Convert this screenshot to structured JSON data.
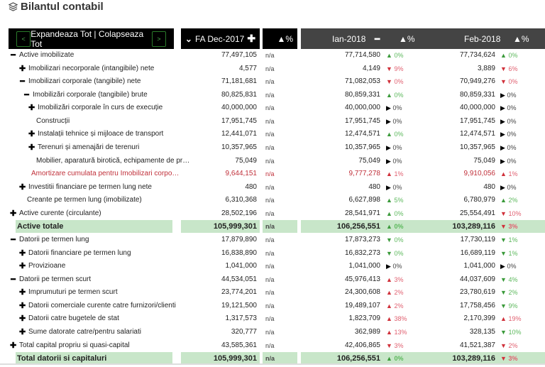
{
  "title": "Bilantul contabil",
  "header": {
    "prev": "<",
    "next": ">",
    "expand_collapse": "Expandeaza Tot | Colapseaza Tot",
    "base_period": "FA Dec-2017",
    "pct": "▲%",
    "periods": [
      "Ian-2018",
      "Feb-2018"
    ]
  },
  "colors": {
    "header_bg": "#000000",
    "period_header_bg": "#444444",
    "total_bg": "#c8e6c9",
    "up_bad": "#d0303a",
    "good": "#3a9a3a"
  },
  "rows": [
    {
      "label": "Active imobilizate",
      "icon": "minus",
      "indent": 0,
      "fa": "77,497,105",
      "na": "n/a",
      "ian": "77,714,580",
      "ian_t": "up",
      "ian_c": "green",
      "ian_p": "0%",
      "feb": "77,734,624",
      "feb_t": "up",
      "feb_c": "green",
      "feb_p": "0%"
    },
    {
      "label": "Imobilizari necorporale (intangibile) nete",
      "icon": "plus",
      "indent": 1,
      "fa": "4,577",
      "na": "n/a",
      "ian": "4,149",
      "ian_t": "down",
      "ian_c": "red",
      "ian_p": "9%",
      "feb": "3,889",
      "feb_t": "down",
      "feb_c": "red",
      "feb_p": "6%"
    },
    {
      "label": "Imobilizari corporale (tangibile) nete",
      "icon": "minus",
      "indent": 1,
      "fa": "71,181,681",
      "na": "n/a",
      "ian": "71,082,053",
      "ian_t": "down",
      "ian_c": "red",
      "ian_p": "0%",
      "feb": "70,949,276",
      "feb_t": "down",
      "feb_c": "red",
      "feb_p": "0%"
    },
    {
      "label": "Imobilizări corporale (tangibile) brute",
      "icon": "minus",
      "indent": 2,
      "fa": "80,825,831",
      "na": "n/a",
      "ian": "80,859,331",
      "ian_t": "up",
      "ian_c": "green",
      "ian_p": "0%",
      "feb": "80,859,331",
      "feb_t": "flat",
      "feb_c": "black",
      "feb_p": "0%"
    },
    {
      "label": "Imobilizări corporale în curs de execuție",
      "icon": "plus",
      "indent": 3,
      "fa": "40,000,000",
      "na": "n/a",
      "ian": "40,000,000",
      "ian_t": "flat",
      "ian_c": "black",
      "ian_p": "0%",
      "feb": "40,000,000",
      "feb_t": "flat",
      "feb_c": "black",
      "feb_p": "0%"
    },
    {
      "label": "Construcții",
      "icon": "none",
      "indent": 4,
      "fa": "17,951,745",
      "na": "n/a",
      "ian": "17,951,745",
      "ian_t": "flat",
      "ian_c": "black",
      "ian_p": "0%",
      "feb": "17,951,745",
      "feb_t": "flat",
      "feb_c": "black",
      "feb_p": "0%"
    },
    {
      "label": "Instalații tehnice și mijloace de transport",
      "icon": "plus",
      "indent": 3,
      "fa": "12,441,071",
      "na": "n/a",
      "ian": "12,474,571",
      "ian_t": "up",
      "ian_c": "green",
      "ian_p": "0%",
      "feb": "12,474,571",
      "feb_t": "flat",
      "feb_c": "black",
      "feb_p": "0%"
    },
    {
      "label": "Terenuri și amenajări de terenuri",
      "icon": "plus",
      "indent": 3,
      "fa": "10,357,965",
      "na": "n/a",
      "ian": "10,357,965",
      "ian_t": "flat",
      "ian_c": "black",
      "ian_p": "0%",
      "feb": "10,357,965",
      "feb_t": "flat",
      "feb_c": "black",
      "feb_p": "0%"
    },
    {
      "label": "Mobilier, aparatură birotică, echipamente de pr…",
      "icon": "none",
      "indent": 4,
      "fa": "75,049",
      "na": "n/a",
      "ian": "75,049",
      "ian_t": "flat",
      "ian_c": "black",
      "ian_p": "0%",
      "feb": "75,049",
      "feb_t": "flat",
      "feb_c": "black",
      "feb_p": "0%"
    },
    {
      "label": "Amortizare cumulata pentru Imobilizari corpo…",
      "icon": "none",
      "indent": 5,
      "red": true,
      "fa": "9,644,151",
      "na": "n/a",
      "ian": "9,777,278",
      "ian_t": "up",
      "ian_c": "red",
      "ian_p": "1%",
      "feb": "9,910,056",
      "feb_t": "up",
      "feb_c": "red",
      "feb_p": "1%"
    },
    {
      "label": "Investitii financiare pe termen lung nete",
      "icon": "plus",
      "indent": 1,
      "fa": "480",
      "na": "n/a",
      "ian": "480",
      "ian_t": "flat",
      "ian_c": "black",
      "ian_p": "0%",
      "feb": "480",
      "feb_t": "flat",
      "feb_c": "black",
      "feb_p": "0%"
    },
    {
      "label": "Creante pe termen lung (imobilizate)",
      "icon": "none",
      "indent": 6,
      "fa": "6,310,368",
      "na": "n/a",
      "ian": "6,627,898",
      "ian_t": "up",
      "ian_c": "green",
      "ian_p": "5%",
      "feb": "6,780,979",
      "feb_t": "up",
      "feb_c": "green",
      "feb_p": "2%"
    },
    {
      "label": "Active curente (circulante)",
      "icon": "plus",
      "indent": 0,
      "fa": "28,502,196",
      "na": "n/a",
      "ian": "28,541,971",
      "ian_t": "up",
      "ian_c": "green",
      "ian_p": "0%",
      "feb": "25,554,491",
      "feb_t": "down",
      "feb_c": "red",
      "feb_p": "10%"
    },
    {
      "label": "Active totale",
      "icon": "none",
      "indent": 7,
      "total": true,
      "fa": "105,999,301",
      "na": "n/a",
      "ian": "106,256,551",
      "ian_t": "up",
      "ian_c": "green",
      "ian_p": "0%",
      "feb": "103,289,116",
      "feb_t": "down",
      "feb_c": "red",
      "feb_p": "3%"
    },
    {
      "label": "Datorii pe termen lung",
      "icon": "minus",
      "indent": 0,
      "fa": "17,879,890",
      "na": "n/a",
      "ian": "17,873,273",
      "ian_t": "down",
      "ian_c": "green",
      "ian_p": "0%",
      "feb": "17,730,119",
      "feb_t": "down",
      "feb_c": "green",
      "feb_p": "1%"
    },
    {
      "label": "Datorii financiare pe termen lung",
      "icon": "plus",
      "indent": 1,
      "fa": "16,838,890",
      "na": "n/a",
      "ian": "16,832,273",
      "ian_t": "down",
      "ian_c": "green",
      "ian_p": "0%",
      "feb": "16,689,119",
      "feb_t": "down",
      "feb_c": "green",
      "feb_p": "1%"
    },
    {
      "label": "Provizioane",
      "icon": "plus",
      "indent": 1,
      "fa": "1,041,000",
      "na": "n/a",
      "ian": "1,041,000",
      "ian_t": "flat",
      "ian_c": "black",
      "ian_p": "0%",
      "feb": "1,041,000",
      "feb_t": "flat",
      "feb_c": "black",
      "feb_p": "0%"
    },
    {
      "label": "Datorii pe termen scurt",
      "icon": "minus",
      "indent": 0,
      "fa": "44,534,051",
      "na": "n/a",
      "ian": "45,976,413",
      "ian_t": "up",
      "ian_c": "red",
      "ian_p": "3%",
      "feb": "44,037,609",
      "feb_t": "down",
      "feb_c": "green",
      "feb_p": "4%"
    },
    {
      "label": "Imprumuturi pe termen scurt",
      "icon": "plus",
      "indent": 1,
      "fa": "23,774,201",
      "na": "n/a",
      "ian": "24,300,608",
      "ian_t": "up",
      "ian_c": "red",
      "ian_p": "2%",
      "feb": "23,780,619",
      "feb_t": "down",
      "feb_c": "green",
      "feb_p": "2%"
    },
    {
      "label": "Datorii comerciale curente catre furnizori/clienti",
      "icon": "plus",
      "indent": 1,
      "fa": "19,121,500",
      "na": "n/a",
      "ian": "19,489,107",
      "ian_t": "up",
      "ian_c": "red",
      "ian_p": "2%",
      "feb": "17,758,456",
      "feb_t": "down",
      "feb_c": "green",
      "feb_p": "9%"
    },
    {
      "label": "Datorii catre bugetele de stat",
      "icon": "plus",
      "indent": 1,
      "fa": "1,317,573",
      "na": "n/a",
      "ian": "1,823,709",
      "ian_t": "up",
      "ian_c": "red",
      "ian_p": "38%",
      "feb": "2,170,399",
      "feb_t": "up",
      "feb_c": "red",
      "feb_p": "19%"
    },
    {
      "label": "Sume datorate catre/pentru salariati",
      "icon": "plus",
      "indent": 1,
      "fa": "320,777",
      "na": "n/a",
      "ian": "362,989",
      "ian_t": "up",
      "ian_c": "red",
      "ian_p": "13%",
      "feb": "328,135",
      "feb_t": "down",
      "feb_c": "green",
      "feb_p": "10%"
    },
    {
      "label": "Total capital propriu si quasi-capital",
      "icon": "plus",
      "indent": 0,
      "fa": "43,585,361",
      "na": "n/a",
      "ian": "42,406,865",
      "ian_t": "down",
      "ian_c": "red",
      "ian_p": "3%",
      "feb": "41,521,387",
      "feb_t": "down",
      "feb_c": "red",
      "feb_p": "2%"
    },
    {
      "label": "Total datorii si capitaluri",
      "icon": "none",
      "indent": 7,
      "total": true,
      "fa": "105,999,301",
      "na": "n/a",
      "ian": "106,256,551",
      "ian_t": "up",
      "ian_c": "green",
      "ian_p": "0%",
      "feb": "103,289,116",
      "feb_t": "down",
      "feb_c": "red",
      "feb_p": "3%"
    }
  ]
}
